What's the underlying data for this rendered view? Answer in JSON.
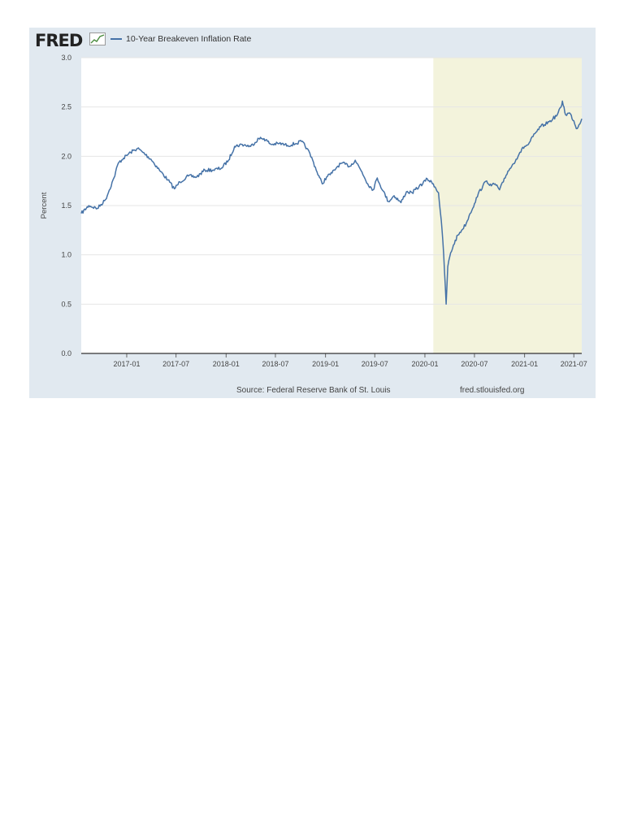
{
  "header": {
    "logo_text": "FRED",
    "logo_icon": "line-graph-icon"
  },
  "colors": {
    "frame": "#e1e9f0",
    "plot_background": "#ffffff",
    "recession_shading": "#f3f3dc",
    "series_line": "#4572a7",
    "gridline": "#e6e6e6"
  },
  "chart_data": {
    "type": "line",
    "title": "",
    "ylabel": "Percent",
    "xlabel": "",
    "ylim": [
      0,
      3.0
    ],
    "yticks": [
      "0.0",
      "0.5",
      "1.0",
      "1.5",
      "2.0",
      "2.5",
      "3.0"
    ],
    "xlim": [
      "2016-07-18",
      "2021-07-30"
    ],
    "xtick_labels": [
      "2017-01",
      "2017-07",
      "2018-01",
      "2018-07",
      "2019-01",
      "2019-07",
      "2020-01",
      "2020-07",
      "2021-01",
      "2021-07"
    ],
    "legend": {
      "position": "top-left",
      "entries": [
        "10-Year Breakeven Inflation Rate"
      ]
    },
    "grid": "horizontal",
    "recession_shading": {
      "start": "2020-02-01",
      "end": "2021-07-30"
    },
    "series": [
      {
        "name": "10-Year Breakeven Inflation Rate",
        "x": [
          "2016-07-18",
          "2016-08-15",
          "2016-09-15",
          "2016-10-15",
          "2016-11-15",
          "2016-12-01",
          "2016-12-20",
          "2017-01-15",
          "2017-02-10",
          "2017-03-01",
          "2017-03-31",
          "2017-05-01",
          "2017-06-01",
          "2017-06-25",
          "2017-07-15",
          "2017-08-15",
          "2017-09-15",
          "2017-10-15",
          "2017-11-15",
          "2017-12-15",
          "2018-01-10",
          "2018-02-01",
          "2018-03-01",
          "2018-04-01",
          "2018-05-01",
          "2018-05-20",
          "2018-06-15",
          "2018-07-15",
          "2018-08-15",
          "2018-09-15",
          "2018-10-05",
          "2018-10-25",
          "2018-11-15",
          "2018-12-01",
          "2018-12-20",
          "2019-01-05",
          "2019-01-25",
          "2019-02-15",
          "2019-03-01",
          "2019-04-01",
          "2019-04-20",
          "2019-05-15",
          "2019-06-05",
          "2019-06-25",
          "2019-07-10",
          "2019-07-31",
          "2019-08-20",
          "2019-09-10",
          "2019-10-05",
          "2019-10-25",
          "2019-11-15",
          "2019-12-10",
          "2020-01-10",
          "2020-02-01",
          "2020-02-20",
          "2020-03-01",
          "2020-03-10",
          "2020-03-19",
          "2020-03-25",
          "2020-04-01",
          "2020-04-15",
          "2020-05-01",
          "2020-05-15",
          "2020-06-01",
          "2020-06-15",
          "2020-07-01",
          "2020-07-15",
          "2020-08-01",
          "2020-08-15",
          "2020-09-01",
          "2020-09-15",
          "2020-10-01",
          "2020-10-15",
          "2020-11-01",
          "2020-11-15",
          "2020-12-01",
          "2020-12-15",
          "2021-01-01",
          "2021-01-15",
          "2021-02-01",
          "2021-02-15",
          "2021-03-01",
          "2021-03-15",
          "2021-04-01",
          "2021-04-15",
          "2021-05-01",
          "2021-05-15",
          "2021-05-20",
          "2021-06-01",
          "2021-06-15",
          "2021-07-01",
          "2021-07-10",
          "2021-07-20",
          "2021-07-30"
        ],
        "y": [
          1.42,
          1.5,
          1.47,
          1.56,
          1.78,
          1.93,
          1.98,
          2.04,
          2.08,
          2.04,
          1.97,
          1.86,
          1.76,
          1.67,
          1.74,
          1.8,
          1.79,
          1.86,
          1.86,
          1.88,
          1.96,
          2.1,
          2.12,
          2.1,
          2.18,
          2.18,
          2.12,
          2.13,
          2.11,
          2.13,
          2.15,
          2.08,
          1.96,
          1.84,
          1.72,
          1.79,
          1.83,
          1.9,
          1.93,
          1.9,
          1.96,
          1.84,
          1.72,
          1.66,
          1.78,
          1.65,
          1.54,
          1.6,
          1.53,
          1.64,
          1.63,
          1.69,
          1.77,
          1.72,
          1.63,
          1.35,
          1.0,
          0.5,
          0.88,
          0.98,
          1.1,
          1.2,
          1.25,
          1.32,
          1.42,
          1.52,
          1.62,
          1.7,
          1.75,
          1.7,
          1.72,
          1.66,
          1.74,
          1.85,
          1.9,
          1.97,
          2.04,
          2.1,
          2.12,
          2.2,
          2.25,
          2.3,
          2.32,
          2.35,
          2.38,
          2.42,
          2.5,
          2.56,
          2.42,
          2.44,
          2.36,
          2.28,
          2.32,
          2.38
        ]
      }
    ]
  },
  "footer": {
    "source": "Source: Federal Reserve Bank of St. Louis",
    "site": "fred.stlouisfed.org"
  }
}
